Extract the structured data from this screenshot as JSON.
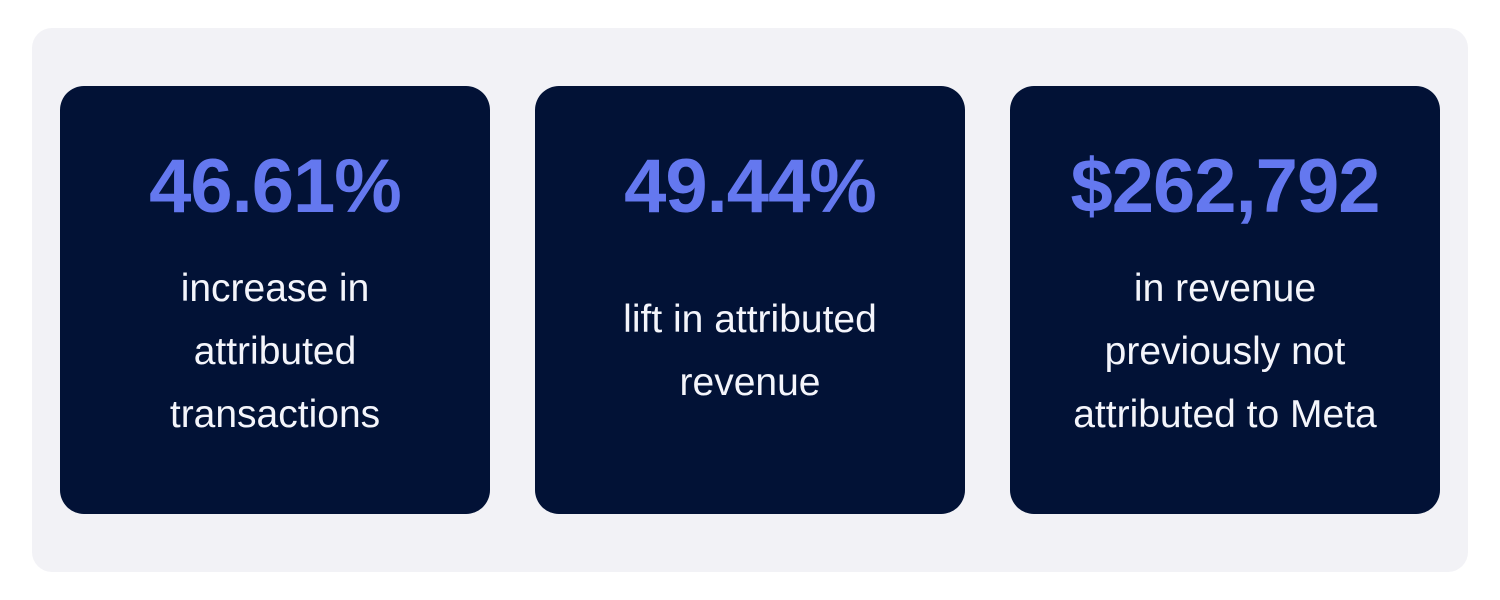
{
  "cards": [
    {
      "value": "46.61%",
      "label": "increase in attributed transactions"
    },
    {
      "value": "49.44%",
      "label": "lift in attributed revenue"
    },
    {
      "value": "$262,792",
      "label": "in revenue previously not attributed to Meta"
    }
  ]
}
